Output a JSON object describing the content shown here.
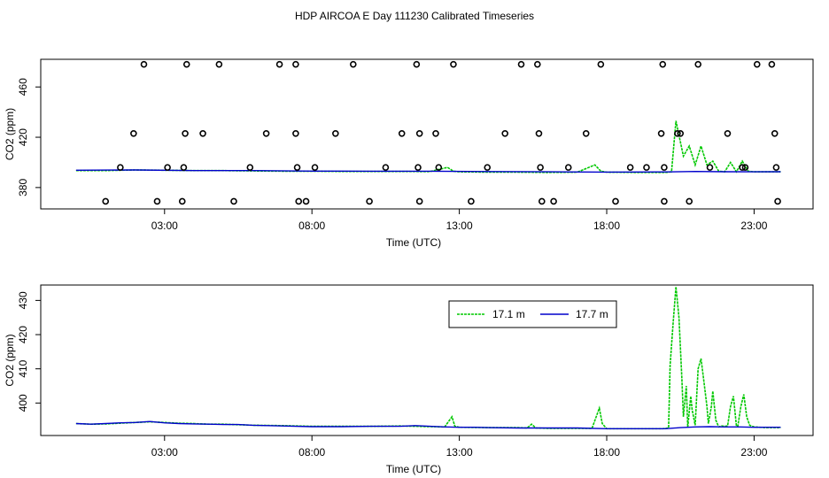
{
  "title": "HDP AIRCOA E  Day 111230  Calibrated Timeseries",
  "colors": {
    "green": "#00c800",
    "blue": "#0000cc",
    "axis": "#000000"
  },
  "chart_data": [
    {
      "type": "line",
      "panel": "top",
      "xlabel": "Time (UTC)",
      "ylabel": "CO2 (ppm)",
      "xlim": [
        -1.2,
        25.0
      ],
      "ylim": [
        363,
        482
      ],
      "x_ticks": [
        3,
        8,
        13,
        18,
        23
      ],
      "x_tick_labels": [
        "03:00",
        "08:00",
        "13:00",
        "18:00",
        "23:00"
      ],
      "y_ticks": [
        380,
        420,
        460
      ],
      "y_tick_labels": [
        "380",
        "420",
        "460"
      ],
      "grid": false,
      "series": [
        {
          "color": "green",
          "x": [
            0,
            1,
            2,
            3,
            4,
            5,
            6,
            7,
            8,
            9,
            10,
            11,
            12,
            12.6,
            12.8,
            13,
            14,
            15,
            16,
            17,
            17.6,
            17.8,
            18,
            19,
            20,
            20.2,
            20.35,
            20.6,
            20.8,
            21,
            21.2,
            21.4,
            21.6,
            21.8,
            22,
            22.2,
            22.4,
            22.6,
            22.8,
            23,
            23.5,
            23.9
          ],
          "y": [
            393.5,
            393.5,
            394,
            393.8,
            393.5,
            393.5,
            393.2,
            393,
            393,
            392.8,
            392.8,
            392.8,
            392.7,
            396,
            393,
            392.5,
            392.2,
            392.2,
            392,
            392.2,
            398,
            393,
            392.2,
            392,
            392,
            392.5,
            433,
            405,
            413,
            398,
            413,
            398,
            401,
            393,
            392.5,
            400,
            392.5,
            401,
            393,
            392.5,
            392.5,
            392.5
          ]
        },
        {
          "color": "blue",
          "x": [
            0,
            2,
            4,
            6,
            8,
            10,
            12,
            14,
            16,
            18,
            20,
            21,
            22,
            23,
            23.9
          ],
          "y": [
            393.8,
            394,
            393.5,
            393.5,
            393.1,
            393,
            393,
            392.7,
            392.5,
            392.3,
            392.4,
            392.8,
            392.6,
            392.5,
            392.6
          ]
        }
      ],
      "markers": {
        "x": [
          1,
          1.5,
          1.95,
          2.3,
          2.75,
          3.1,
          3.6,
          3.65,
          3.7,
          3.75,
          4.3,
          4.85,
          5.35,
          5.9,
          6.45,
          6.9,
          7.45,
          7.45,
          7.5,
          7.55,
          7.8,
          8.1,
          8.8,
          9.4,
          9.95,
          10.5,
          11.05,
          11.55,
          11.6,
          11.65,
          11.65,
          12.2,
          12.3,
          12.8,
          13.4,
          13.95,
          14.55,
          15.1,
          15.65,
          15.7,
          15.75,
          15.8,
          16.2,
          16.7,
          17.3,
          17.8,
          18.3,
          18.8,
          19.35,
          19.85,
          19.9,
          19.95,
          19.95,
          20.4,
          20.5,
          20.8,
          21.1,
          21.5,
          22.1,
          22.6,
          22.7,
          23.1,
          23.6,
          23.7,
          23.75,
          23.8
        ],
        "y": [
          369,
          396,
          423,
          478,
          369,
          396,
          369,
          396,
          423,
          478,
          423,
          478,
          369,
          396,
          423,
          478,
          478,
          423,
          396,
          369,
          369,
          396,
          423,
          478,
          369,
          396,
          423,
          478,
          396,
          423,
          369,
          423,
          396,
          478,
          369,
          396,
          423,
          478,
          478,
          423,
          396,
          369,
          369,
          396,
          423,
          478,
          369,
          396,
          396,
          423,
          478,
          369,
          396,
          423,
          423,
          369,
          478,
          396,
          423,
          396,
          396,
          478,
          478,
          423,
          396,
          369
        ]
      }
    },
    {
      "type": "line",
      "panel": "bottom",
      "xlabel": "Time (UTC)",
      "ylabel": "CO2 (ppm)",
      "xlim": [
        -1.2,
        25.0
      ],
      "ylim": [
        390.5,
        434.5
      ],
      "x_ticks": [
        3,
        8,
        13,
        18,
        23
      ],
      "x_tick_labels": [
        "03:00",
        "08:00",
        "13:00",
        "18:00",
        "23:00"
      ],
      "y_ticks": [
        400,
        410,
        420,
        430
      ],
      "y_tick_labels": [
        "400",
        "410",
        "420",
        "430"
      ],
      "grid": false,
      "legend": {
        "position": "top-center",
        "entries": [
          {
            "label": "17.1 m",
            "color": "green"
          },
          {
            "label": "17.7 m",
            "color": "blue"
          }
        ]
      },
      "series": [
        {
          "name": "17.1 m",
          "color": "green",
          "x": [
            0,
            0.5,
            1,
            1.5,
            2,
            2.5,
            3,
            3.5,
            4,
            4.5,
            5,
            6,
            7,
            8,
            9,
            10,
            11,
            12,
            12.5,
            12.75,
            12.85,
            13,
            14,
            15,
            15.3,
            15.45,
            15.6,
            16,
            17,
            17.5,
            17.75,
            17.85,
            18,
            19,
            19.9,
            20,
            20.1,
            20.15,
            20.25,
            20.35,
            20.45,
            20.55,
            20.6,
            20.7,
            20.75,
            20.85,
            20.9,
            21,
            21.1,
            21.2,
            21.3,
            21.4,
            21.45,
            21.55,
            21.6,
            21.7,
            21.8,
            21.9,
            22,
            22.1,
            22.2,
            22.3,
            22.4,
            22.45,
            22.55,
            22.65,
            22.75,
            22.85,
            23,
            23.4,
            23.9
          ],
          "y": [
            394,
            393.8,
            393.9,
            394.1,
            394.3,
            394.5,
            394.3,
            394.1,
            394,
            393.8,
            393.8,
            393.5,
            393.4,
            393.2,
            393.2,
            393.2,
            393.3,
            393.1,
            393,
            396,
            393.2,
            392.9,
            392.8,
            392.8,
            392.7,
            393.8,
            392.7,
            392.6,
            392.6,
            392.6,
            398.5,
            394,
            392.5,
            392.5,
            392.5,
            392.6,
            392.7,
            411,
            423,
            434,
            425,
            407,
            396,
            405,
            392.9,
            402,
            398,
            393.5,
            410,
            413,
            406,
            399,
            394,
            399,
            403.5,
            395,
            393,
            393.3,
            393.2,
            393.3,
            399,
            402,
            393.2,
            393.3,
            399,
            402.5,
            396,
            393.5,
            393,
            392.8,
            392.8
          ]
        },
        {
          "name": "17.7 m",
          "color": "blue",
          "x": [
            0,
            0.5,
            1,
            1.5,
            2,
            2.5,
            3,
            3.5,
            4,
            4.5,
            5,
            5.5,
            6,
            7,
            8,
            9,
            10,
            11,
            11.5,
            12,
            12.5,
            13,
            13.5,
            14,
            15,
            16,
            17,
            18,
            19,
            20,
            20.5,
            21,
            21.5,
            22,
            22.5,
            23,
            23.9
          ],
          "y": [
            394,
            393.8,
            394,
            394.2,
            394.3,
            394.6,
            394.2,
            394,
            393.9,
            393.8,
            393.7,
            393.7,
            393.5,
            393.3,
            393.1,
            393.1,
            393.2,
            393.2,
            393.4,
            393.2,
            393,
            392.9,
            392.9,
            392.8,
            392.7,
            392.7,
            392.7,
            392.5,
            392.5,
            392.5,
            392.8,
            393,
            393.1,
            393,
            393,
            392.9,
            392.9
          ]
        }
      ]
    }
  ]
}
